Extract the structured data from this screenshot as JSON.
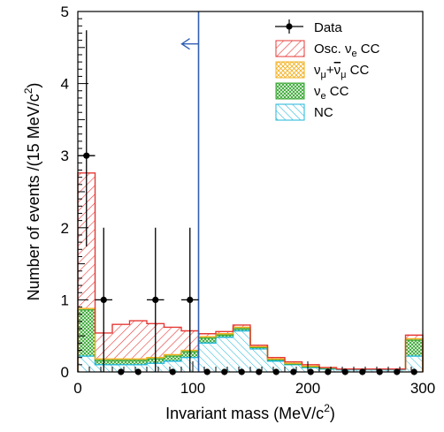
{
  "chart_data": {
    "type": "histogram-stack",
    "xlabel_main": "Invariant mass (MeV/c",
    "xlabel_sup": "2",
    "xlabel_end": ")",
    "ylabel_main": "Number of events /(15 MeV/c",
    "ylabel_sup": "2",
    "ylabel_end": ")",
    "xlim": [
      0,
      300
    ],
    "ylim": [
      0,
      5
    ],
    "x_ticks": [
      "0",
      "100",
      "200",
      "300"
    ],
    "y_ticks": [
      "0",
      "1",
      "2",
      "3",
      "4",
      "5"
    ],
    "bin_edges": [
      0,
      15,
      30,
      45,
      60,
      75,
      90,
      105,
      120,
      135,
      150,
      165,
      180,
      195,
      210,
      225,
      240,
      255,
      270,
      285,
      300
    ],
    "series": [
      {
        "key": "nc",
        "values": [
          0.22,
          0.1,
          0.1,
          0.1,
          0.12,
          0.15,
          0.2,
          0.4,
          0.48,
          0.57,
          0.32,
          0.15,
          0.1,
          0.06,
          0.04,
          0.03,
          0.03,
          0.03,
          0.03,
          0.22
        ]
      },
      {
        "key": "nue",
        "values": [
          0.64,
          0.06,
          0.06,
          0.06,
          0.06,
          0.07,
          0.08,
          0.07,
          0.03,
          0.03,
          0.02,
          0.02,
          0.01,
          0.01,
          0.01,
          0.01,
          0.01,
          0.01,
          0.01,
          0.22
        ]
      },
      {
        "key": "numu",
        "values": [
          0.02,
          0.02,
          0.02,
          0.02,
          0.02,
          0.02,
          0.02,
          0.02,
          0.02,
          0.02,
          0.01,
          0.01,
          0.01,
          0.01,
          0.01,
          0.0,
          0.0,
          0.0,
          0.0,
          0.02
        ]
      },
      {
        "key": "osc",
        "values": [
          1.88,
          0.36,
          0.48,
          0.53,
          0.47,
          0.38,
          0.27,
          0.04,
          0.03,
          0.03,
          0.02,
          0.02,
          0.02,
          0.02,
          0.0,
          0.0,
          0.0,
          0.0,
          0.0,
          0.05
        ]
      }
    ],
    "data_points": {
      "x": [
        7.5,
        22.5,
        37.5,
        52.5,
        67.5,
        82.5,
        97.5,
        112.5,
        127.5,
        142.5,
        157.5,
        172.5,
        187.5,
        202.5,
        217.5,
        232.5,
        247.5,
        262.5,
        277.5,
        292.5
      ],
      "y": [
        3,
        1,
        0,
        0,
        1,
        0,
        1,
        0,
        0,
        0,
        0,
        0,
        0,
        0,
        0,
        0,
        0,
        0,
        0,
        0
      ],
      "err_hi": [
        4.74,
        2.0,
        0,
        0,
        2.0,
        0,
        2.0,
        0,
        0,
        0,
        0,
        0,
        0,
        0,
        0,
        0,
        0,
        0,
        0,
        0
      ],
      "err_lo": [
        1.74,
        0.0,
        0,
        0,
        0.0,
        0,
        0.0,
        0,
        0,
        0,
        0,
        0,
        0,
        0,
        0,
        0,
        0,
        0,
        0,
        0
      ]
    },
    "cut_x": 105,
    "cut_color": "#2f5fb3",
    "colors": {
      "osc": "#e53935",
      "numu": "#f2b01e",
      "nue": "#3aa835",
      "nc": "#1fb7d9"
    },
    "legend": {
      "placement": "top-right",
      "data": "Data",
      "osc_main": "Osc. ν",
      "osc_sub": "e",
      "osc_end": " CC",
      "numu_a": "ν",
      "numu_a_sub": "μ",
      "numu_plus": "+",
      "numu_b": "ν",
      "numu_b_sub": "μ",
      "numu_end": " CC",
      "nue_main": "ν",
      "nue_sub": "e",
      "nue_end": " CC",
      "nc": "NC"
    }
  }
}
